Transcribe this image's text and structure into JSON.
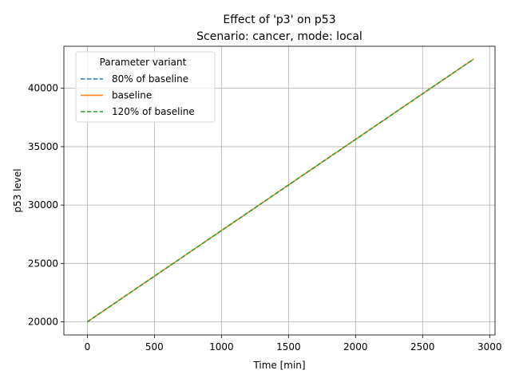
{
  "chart_data": {
    "type": "line",
    "title": "Effect of 'p3' on p53",
    "subtitle": "Scenario: cancer, mode: local",
    "xlabel": "Time [min]",
    "ylabel": "p53 level",
    "xlim": [
      -175,
      3040
    ],
    "ylim": [
      18875,
      43600
    ],
    "xticks": [
      0,
      500,
      1000,
      1500,
      2000,
      2500,
      3000
    ],
    "yticks": [
      20000,
      25000,
      30000,
      35000,
      40000
    ],
    "grid": true,
    "legend": {
      "title": "Parameter variant",
      "placement": "top-left"
    },
    "series": [
      {
        "name": "80% of baseline",
        "color": "#1f77b4",
        "dash": "dashed",
        "x": [
          0,
          2880
        ],
        "y": [
          20000,
          42500
        ]
      },
      {
        "name": "baseline",
        "color": "#ff7f0e",
        "dash": "solid",
        "x": [
          0,
          2880
        ],
        "y": [
          20000,
          42500
        ]
      },
      {
        "name": "120% of baseline",
        "color": "#2ca02c",
        "dash": "dashed",
        "x": [
          0,
          2880
        ],
        "y": [
          20000,
          42500
        ]
      }
    ]
  }
}
